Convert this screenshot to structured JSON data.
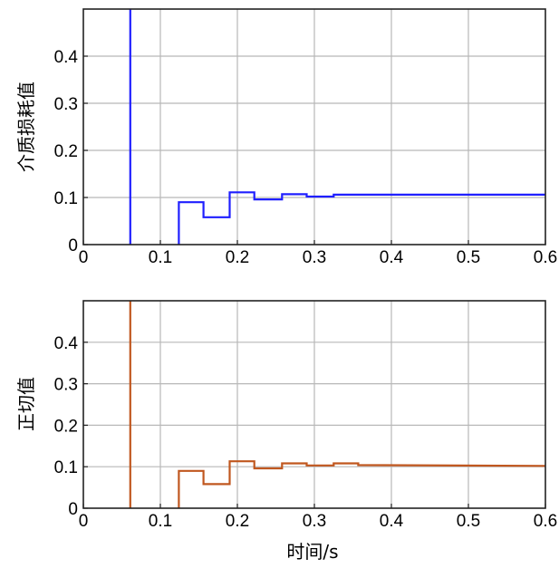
{
  "xlabel": "时间/s",
  "chart_data": [
    {
      "type": "line",
      "ylabel": "介质损耗值",
      "xlim": [
        0,
        0.6
      ],
      "ylim": [
        0,
        0.5
      ],
      "xticks": [
        0,
        0.1,
        0.2,
        0.3,
        0.4,
        0.5,
        0.6
      ],
      "xtick_labels": [
        "0",
        "0.1",
        "0.2",
        "0.3",
        "0.4",
        "0.5",
        "0.6"
      ],
      "yticks": [
        0,
        0.1,
        0.2,
        0.3,
        0.4
      ],
      "ytick_labels": [
        "0",
        "0.1",
        "0.2",
        "0.3",
        "0.4"
      ],
      "grid": true,
      "series": [
        {
          "color": "#1f1fff",
          "step": true,
          "x": [
            0.061,
            0.061,
            0.061,
            0.124,
            0.124,
            0.124,
            0.156,
            0.156,
            0.19,
            0.19,
            0.222,
            0.222,
            0.258,
            0.258,
            0.29,
            0.29,
            0.325,
            0.325,
            0.6
          ],
          "y": [
            0,
            0.5,
            null,
            0,
            0.09,
            0.09,
            0.09,
            0.058,
            0.058,
            0.111,
            0.111,
            0.096,
            0.096,
            0.107,
            0.107,
            0.102,
            0.102,
            0.106,
            0.106
          ]
        }
      ]
    },
    {
      "type": "line",
      "ylabel": "正切值",
      "xlim": [
        0,
        0.6
      ],
      "ylim": [
        0,
        0.5
      ],
      "xticks": [
        0,
        0.1,
        0.2,
        0.3,
        0.4,
        0.5,
        0.6
      ],
      "xtick_labels": [
        "0",
        "0.1",
        "0.2",
        "0.3",
        "0.4",
        "0.5",
        "0.6"
      ],
      "yticks": [
        0,
        0.1,
        0.2,
        0.3,
        0.4
      ],
      "ytick_labels": [
        "0",
        "0.1",
        "0.2",
        "0.3",
        "0.4"
      ],
      "grid": true,
      "series": [
        {
          "color": "#c0571f",
          "step": true,
          "x": [
            0.061,
            0.061,
            0.061,
            0.124,
            0.124,
            0.124,
            0.156,
            0.156,
            0.19,
            0.19,
            0.222,
            0.222,
            0.258,
            0.258,
            0.29,
            0.29,
            0.325,
            0.325,
            0.357,
            0.357,
            0.6
          ],
          "y": [
            0,
            0.5,
            null,
            0,
            0.09,
            0.09,
            0.09,
            0.058,
            0.058,
            0.113,
            0.113,
            0.096,
            0.096,
            0.108,
            0.108,
            0.103,
            0.103,
            0.108,
            0.108,
            0.104,
            0.102
          ]
        }
      ]
    }
  ]
}
